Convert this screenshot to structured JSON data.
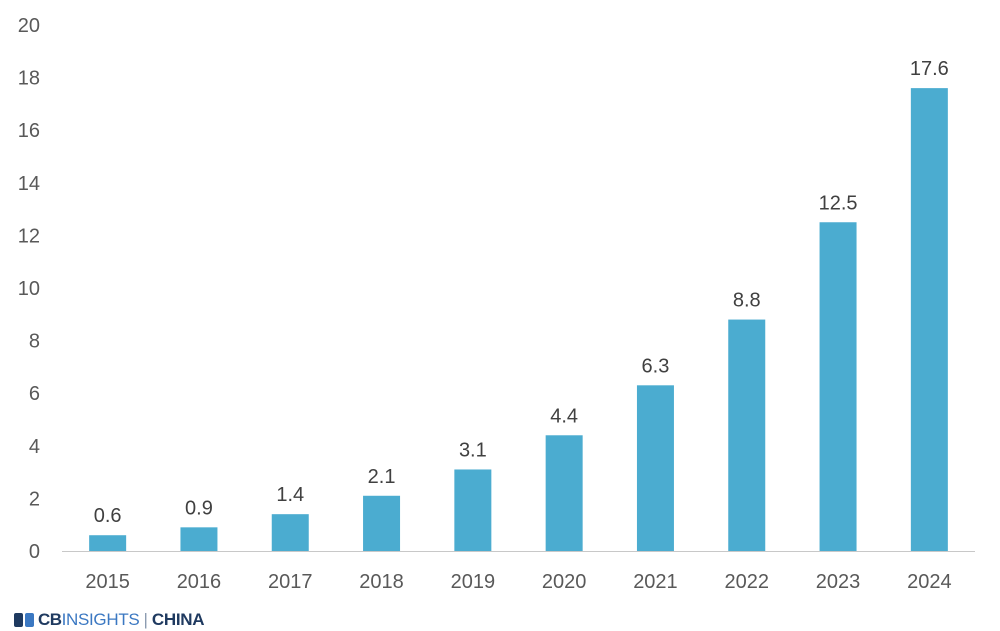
{
  "colors": {
    "bar": "#4bacd0",
    "axis": "#c8c8c8",
    "tick_text": "#595959",
    "label_text": "#404040",
    "logo_dark": "#1f3a60"
  },
  "chart_data": {
    "type": "bar",
    "categories": [
      "2015",
      "2016",
      "2017",
      "2018",
      "2019",
      "2020",
      "2021",
      "2022",
      "2023",
      "2024"
    ],
    "values": [
      0.6,
      0.9,
      1.4,
      2.1,
      3.1,
      4.4,
      6.3,
      8.8,
      12.5,
      17.6
    ],
    "data_labels": [
      "0.6",
      "0.9",
      "1.4",
      "2.1",
      "3.1",
      "4.4",
      "6.3",
      "8.8",
      "12.5",
      "17.6"
    ],
    "yticks": [
      "0",
      "2",
      "4",
      "6",
      "8",
      "10",
      "12",
      "14",
      "16",
      "18",
      "20"
    ],
    "ylim": [
      0,
      20
    ],
    "title": "",
    "xlabel": "",
    "ylabel": "",
    "grid": false,
    "legend": "none"
  },
  "logo": {
    "brand": "CB",
    "brand_icon": "cb-logo-mark-icon",
    "product": "INSIGHTS",
    "separator": "|",
    "region": "CHINA"
  }
}
